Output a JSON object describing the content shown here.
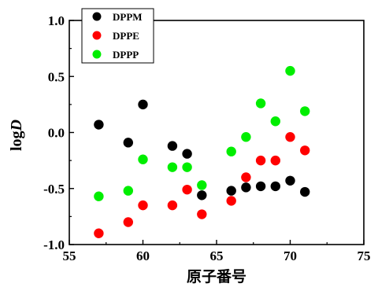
{
  "chart_data": {
    "type": "scatter",
    "xlabel": "原子番号",
    "ylabel_main": "log",
    "ylabel_italic": "D",
    "xlim": [
      55,
      75
    ],
    "ylim": [
      -1.0,
      1.0
    ],
    "xticks": [
      55,
      60,
      65,
      70,
      75
    ],
    "xtick_labels": [
      "55",
      "60",
      "65",
      "70",
      "75"
    ],
    "yticks": [
      -1.0,
      -0.5,
      0.0,
      0.5,
      1.0
    ],
    "ytick_labels": [
      "-1.0",
      "-0.5",
      "0.0",
      "0.5",
      "1.0"
    ],
    "grid": false,
    "legend_position": "top-left",
    "series": [
      {
        "name": "DPPM",
        "color": "#000000",
        "x": [
          57,
          59,
          60,
          62,
          63,
          64,
          66,
          67,
          68,
          69,
          70,
          71
        ],
        "y": [
          0.07,
          -0.09,
          0.25,
          -0.12,
          -0.19,
          -0.56,
          -0.52,
          -0.49,
          -0.48,
          -0.48,
          -0.43,
          -0.53
        ]
      },
      {
        "name": "DPPE",
        "color": "#ff0000",
        "x": [
          57,
          59,
          60,
          62,
          63,
          64,
          66,
          67,
          68,
          69,
          70,
          71
        ],
        "y": [
          -0.9,
          -0.8,
          -0.65,
          -0.65,
          -0.51,
          -0.73,
          -0.61,
          -0.4,
          -0.25,
          -0.25,
          -0.04,
          -0.16
        ]
      },
      {
        "name": "DPPP",
        "color": "#00ee00",
        "x": [
          57,
          59,
          60,
          62,
          63,
          64,
          66,
          67,
          68,
          69,
          70,
          71
        ],
        "y": [
          -0.57,
          -0.52,
          -0.24,
          -0.31,
          -0.31,
          -0.47,
          -0.17,
          -0.04,
          0.26,
          0.1,
          0.55,
          0.19
        ]
      }
    ]
  }
}
